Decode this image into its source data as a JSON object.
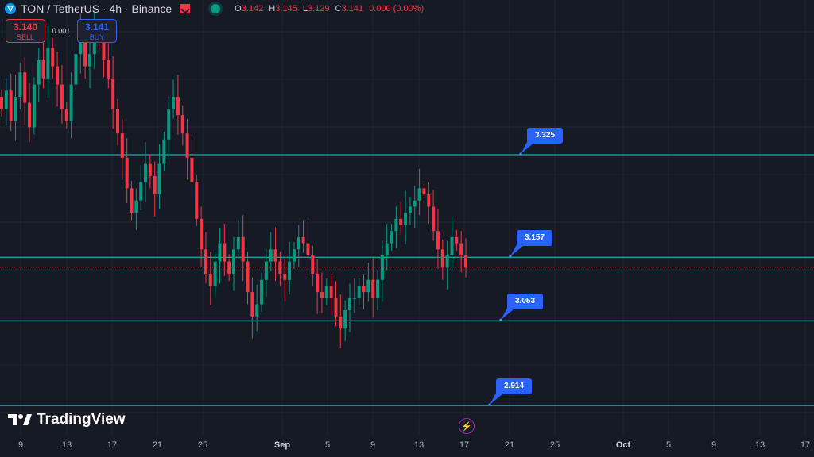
{
  "header": {
    "symbol": "TON / TetherUS · 4h · Binance",
    "open_label": "O",
    "open": "3.142",
    "high_label": "H",
    "high": "3.145",
    "low_label": "L",
    "low": "3.129",
    "close_label": "C",
    "close": "3.141",
    "change": "0.000 (0.00%)"
  },
  "trade": {
    "sell_price": "3.140",
    "sell_label": "SELL",
    "spread": "0.001",
    "buy_price": "3.141",
    "buy_label": "BUY"
  },
  "brand": "TradingView",
  "colors": {
    "background": "#161a25",
    "up": "#089981",
    "down": "#f23645",
    "level_line": "#26c6da",
    "callout": "#2962ff"
  },
  "chart_data": {
    "type": "candlestick",
    "interval": "4h",
    "x_ticks": [
      "9",
      "13",
      "17",
      "21",
      "25",
      "Sep",
      "5",
      "9",
      "13",
      "17",
      "21",
      "25",
      "Oct",
      "5",
      "9",
      "13",
      "17"
    ],
    "bold_ticks": [
      "Sep",
      "Oct"
    ],
    "ylim": [
      2.87,
      3.55
    ],
    "current_price": 3.141,
    "levels": [
      3.325,
      3.157,
      3.053,
      2.914
    ],
    "approx_closes": [
      3.4,
      3.43,
      3.38,
      3.42,
      3.46,
      3.41,
      3.37,
      3.44,
      3.48,
      3.45,
      3.5,
      3.47,
      3.44,
      3.4,
      3.38,
      3.44,
      3.49,
      3.52,
      3.47,
      3.49,
      3.53,
      3.51,
      3.48,
      3.45,
      3.4,
      3.36,
      3.32,
      3.27,
      3.23,
      3.25,
      3.28,
      3.31,
      3.29,
      3.26,
      3.31,
      3.35,
      3.4,
      3.42,
      3.39,
      3.36,
      3.32,
      3.28,
      3.22,
      3.17,
      3.13,
      3.11,
      3.15,
      3.18,
      3.15,
      3.13,
      3.17,
      3.19,
      3.15,
      3.1,
      3.06,
      3.08,
      3.12,
      3.15,
      3.17,
      3.15,
      3.13,
      3.12,
      3.15,
      3.17,
      3.19,
      3.18,
      3.16,
      3.13,
      3.1,
      3.09,
      3.11,
      3.09,
      3.06,
      3.04,
      3.07,
      3.09,
      3.09,
      3.11,
      3.1,
      3.12,
      3.09,
      3.12,
      3.16,
      3.18,
      3.2,
      3.22,
      3.21,
      3.23,
      3.24,
      3.25,
      3.27,
      3.26,
      3.24,
      3.2,
      3.17,
      3.14,
      3.16,
      3.19,
      3.18,
      3.16,
      3.14
    ]
  }
}
